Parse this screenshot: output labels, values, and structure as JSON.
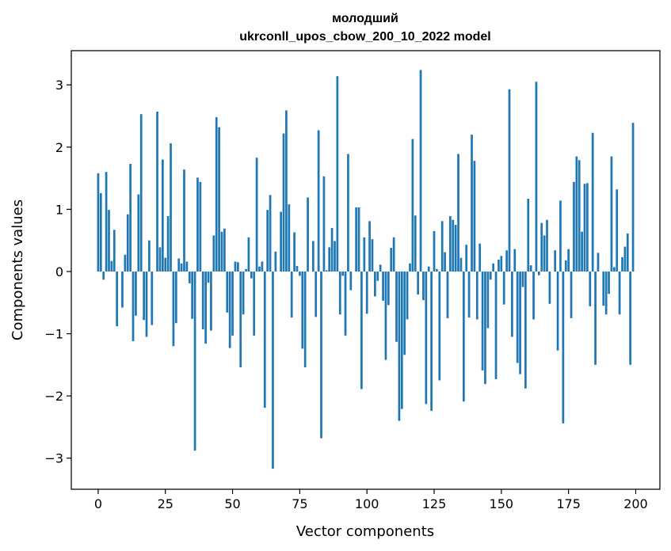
{
  "chart_data": {
    "type": "bar",
    "title": "молодший",
    "subtitle": "ukrconll_upos_cbow_200_10_2022 model",
    "xlabel": "Vector components",
    "ylabel": "Components values",
    "xlim": [
      -10,
      209
    ],
    "ylim": [
      -3.5,
      3.55
    ],
    "xticks": [
      0,
      25,
      50,
      75,
      100,
      125,
      150,
      175,
      200
    ],
    "yticks": [
      -3,
      -2,
      -1,
      0,
      1,
      2,
      3
    ],
    "grid": false,
    "bar_color": "#1f77b4",
    "x": [
      0,
      1,
      2,
      3,
      4,
      5,
      6,
      7,
      8,
      9,
      10,
      11,
      12,
      13,
      14,
      15,
      16,
      17,
      18,
      19,
      20,
      21,
      22,
      23,
      24,
      25,
      26,
      27,
      28,
      29,
      30,
      31,
      32,
      33,
      34,
      35,
      36,
      37,
      38,
      39,
      40,
      41,
      42,
      43,
      44,
      45,
      46,
      47,
      48,
      49,
      50,
      51,
      52,
      53,
      54,
      55,
      56,
      57,
      58,
      59,
      60,
      61,
      62,
      63,
      64,
      65,
      66,
      67,
      68,
      69,
      70,
      71,
      72,
      73,
      74,
      75,
      76,
      77,
      78,
      79,
      80,
      81,
      82,
      83,
      84,
      85,
      86,
      87,
      88,
      89,
      90,
      91,
      92,
      93,
      94,
      95,
      96,
      97,
      98,
      99,
      100,
      101,
      102,
      103,
      104,
      105,
      106,
      107,
      108,
      109,
      110,
      111,
      112,
      113,
      114,
      115,
      116,
      117,
      118,
      119,
      120,
      121,
      122,
      123,
      124,
      125,
      126,
      127,
      128,
      129,
      130,
      131,
      132,
      133,
      134,
      135,
      136,
      137,
      138,
      139,
      140,
      141,
      142,
      143,
      144,
      145,
      146,
      147,
      148,
      149,
      150,
      151,
      152,
      153,
      154,
      155,
      156,
      157,
      158,
      159,
      160,
      161,
      162,
      163,
      164,
      165,
      166,
      167,
      168,
      169,
      170,
      171,
      172,
      173,
      174,
      175,
      176,
      177,
      178,
      179,
      180,
      181,
      182,
      183,
      184,
      185,
      186,
      187,
      188,
      189,
      190,
      191,
      192,
      193,
      194,
      195,
      196,
      197,
      198,
      199
    ],
    "values": [
      1.58,
      1.26,
      -0.13,
      1.6,
      0.99,
      0.17,
      0.67,
      -0.88,
      0.0,
      -0.58,
      0.27,
      0.92,
      1.73,
      -1.12,
      -0.71,
      1.24,
      2.53,
      -0.78,
      -1.05,
      0.5,
      -0.86,
      0.0,
      2.57,
      0.39,
      1.8,
      0.22,
      0.89,
      2.06,
      -1.2,
      -0.83,
      0.21,
      0.13,
      1.64,
      0.16,
      -0.19,
      -0.76,
      -2.88,
      1.51,
      1.44,
      -0.93,
      -1.16,
      -0.18,
      -0.95,
      0.58,
      2.48,
      2.32,
      0.64,
      0.69,
      -0.66,
      -1.23,
      -1.03,
      0.16,
      0.15,
      -1.54,
      -0.69,
      0.04,
      0.55,
      -0.11,
      -1.03,
      1.83,
      0.08,
      0.16,
      -2.19,
      0.99,
      1.23,
      -3.17,
      0.32,
      0.0,
      0.96,
      2.22,
      2.59,
      1.08,
      -0.74,
      0.63,
      0.09,
      -0.07,
      -1.24,
      -1.54,
      1.19,
      0.0,
      0.49,
      -0.73,
      2.27,
      -2.68,
      1.53,
      0.02,
      0.39,
      0.7,
      0.49,
      3.14,
      -0.69,
      -0.07,
      -1.03,
      1.89,
      -0.3,
      0.0,
      1.03,
      1.03,
      -1.89,
      0.55,
      -0.68,
      0.81,
      0.52,
      -0.4,
      -0.15,
      0.11,
      -0.47,
      -1.42,
      -0.54,
      0.38,
      0.55,
      -1.13,
      -2.4,
      -2.21,
      -1.34,
      -0.77,
      0.13,
      2.13,
      0.9,
      -0.37,
      3.24,
      -0.46,
      -2.13,
      0.08,
      -2.24,
      0.65,
      0.04,
      -1.75,
      0.81,
      0.31,
      -0.75,
      0.89,
      0.83,
      0.75,
      1.89,
      0.22,
      -2.09,
      0.43,
      -0.74,
      2.2,
      1.78,
      -0.77,
      0.45,
      -1.59,
      -1.81,
      -0.91,
      -0.13,
      0.13,
      -1.73,
      0.19,
      0.25,
      -0.53,
      0.34,
      2.93,
      -1.05,
      0.36,
      -1.47,
      -1.65,
      -0.25,
      -1.88,
      1.17,
      0.1,
      -0.77,
      3.05,
      -0.06,
      0.78,
      0.58,
      0.83,
      -0.52,
      0.0,
      0.34,
      -1.27,
      1.14,
      -2.44,
      0.18,
      0.36,
      -0.75,
      1.44,
      1.85,
      1.79,
      0.64,
      1.41,
      1.42,
      -0.56,
      2.23,
      -1.5,
      0.3,
      0.0,
      -0.55,
      -0.69,
      -0.36,
      1.85,
      0.07,
      1.32,
      -0.69,
      0.23,
      0.4,
      0.61,
      -1.5,
      2.39
    ]
  }
}
